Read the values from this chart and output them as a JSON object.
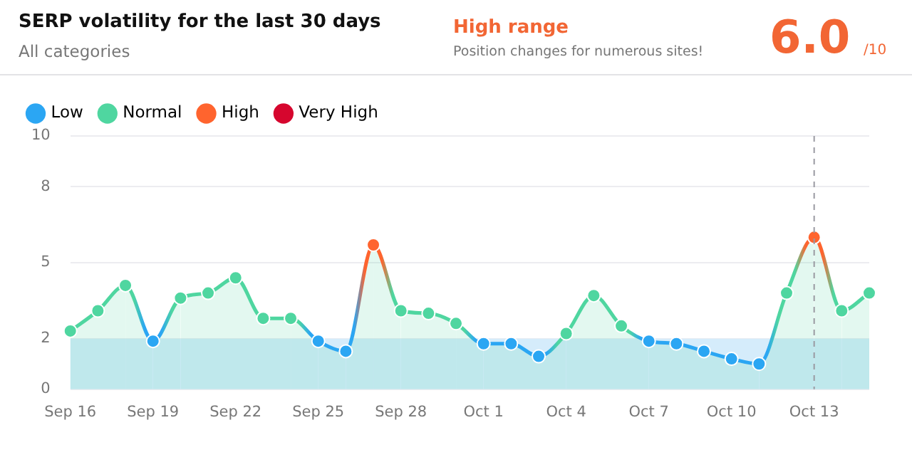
{
  "chart_data": {
    "type": "area",
    "title": "SERP volatility for the last 30 days",
    "subtitle": "All categories",
    "annotations": [
      "High range",
      "Position changes for numerous sites!",
      "6.0",
      "/10"
    ],
    "categories": [
      "Sep 16",
      null,
      null,
      "Sep 19",
      null,
      null,
      "Sep 22",
      null,
      null,
      "Sep 25",
      null,
      null,
      "Sep 28",
      null,
      null,
      "Oct 1",
      null,
      null,
      "Oct 4",
      null,
      null,
      "Oct 7",
      null,
      null,
      "Oct 10",
      null,
      null,
      "Oct 13",
      null,
      null
    ],
    "series": [
      {
        "color": "#4fd6a0",
        "marker": "none",
        "values": [
          2.3,
          3.1,
          4.1,
          1.9,
          3.6,
          3.8,
          4.4,
          2.8,
          2.8,
          1.9,
          1.5,
          5.7,
          3.1,
          3.0,
          2.6,
          1.8,
          1.8,
          1.3,
          2.2,
          3.7,
          2.5,
          1.9,
          1.8,
          1.5,
          1.2,
          1.0,
          3.8,
          6.0,
          3.1,
          3.8
        ]
      },
      {
        "type": "scatter",
        "name": "Low",
        "color": "#2ba6f3",
        "values": [
          null,
          null,
          null,
          1.9,
          null,
          null,
          null,
          null,
          null,
          1.9,
          1.5,
          null,
          null,
          null,
          null,
          1.8,
          1.8,
          1.3,
          null,
          null,
          null,
          1.9,
          1.8,
          1.5,
          1.2,
          1.0,
          null,
          null,
          null,
          null
        ]
      },
      {
        "type": "scatter",
        "name": "Normal",
        "color": "#4fd6a0",
        "values": [
          2.3,
          3.1,
          4.1,
          null,
          3.6,
          3.8,
          4.4,
          2.8,
          2.8,
          null,
          null,
          null,
          3.1,
          3.0,
          2.6,
          null,
          null,
          null,
          2.2,
          3.7,
          2.5,
          null,
          null,
          null,
          null,
          null,
          3.8,
          null,
          3.1,
          3.8
        ]
      },
      {
        "type": "scatter",
        "name": "High",
        "color": "#ff642e",
        "values": [
          null,
          null,
          null,
          null,
          null,
          null,
          null,
          null,
          null,
          null,
          null,
          5.7,
          null,
          null,
          null,
          null,
          null,
          null,
          null,
          null,
          null,
          null,
          null,
          null,
          null,
          null,
          null,
          6.0,
          null,
          null
        ]
      },
      {
        "type": "scatter",
        "name": "Very High",
        "color": "#d6062e",
        "values": [
          null,
          null,
          null,
          null,
          null,
          null,
          null,
          null,
          null,
          null,
          null,
          null,
          null,
          null,
          null,
          null,
          null,
          null,
          null,
          null,
          null,
          null,
          null,
          null,
          null,
          null,
          null,
          null,
          null,
          null
        ]
      }
    ],
    "bands": [
      {
        "axis": "y",
        "from": 0,
        "to": 2,
        "color": "#d5ecfb"
      }
    ],
    "ref_lines": [
      {
        "axis": "x",
        "value": "Oct 13",
        "color": "#9a9aa2",
        "line_style": "dashed"
      }
    ],
    "ylim": [
      0,
      10
    ],
    "yticks": [
      0,
      2,
      5,
      8,
      10
    ],
    "grid": "y",
    "legend": "top left",
    "marker": "circle"
  }
}
